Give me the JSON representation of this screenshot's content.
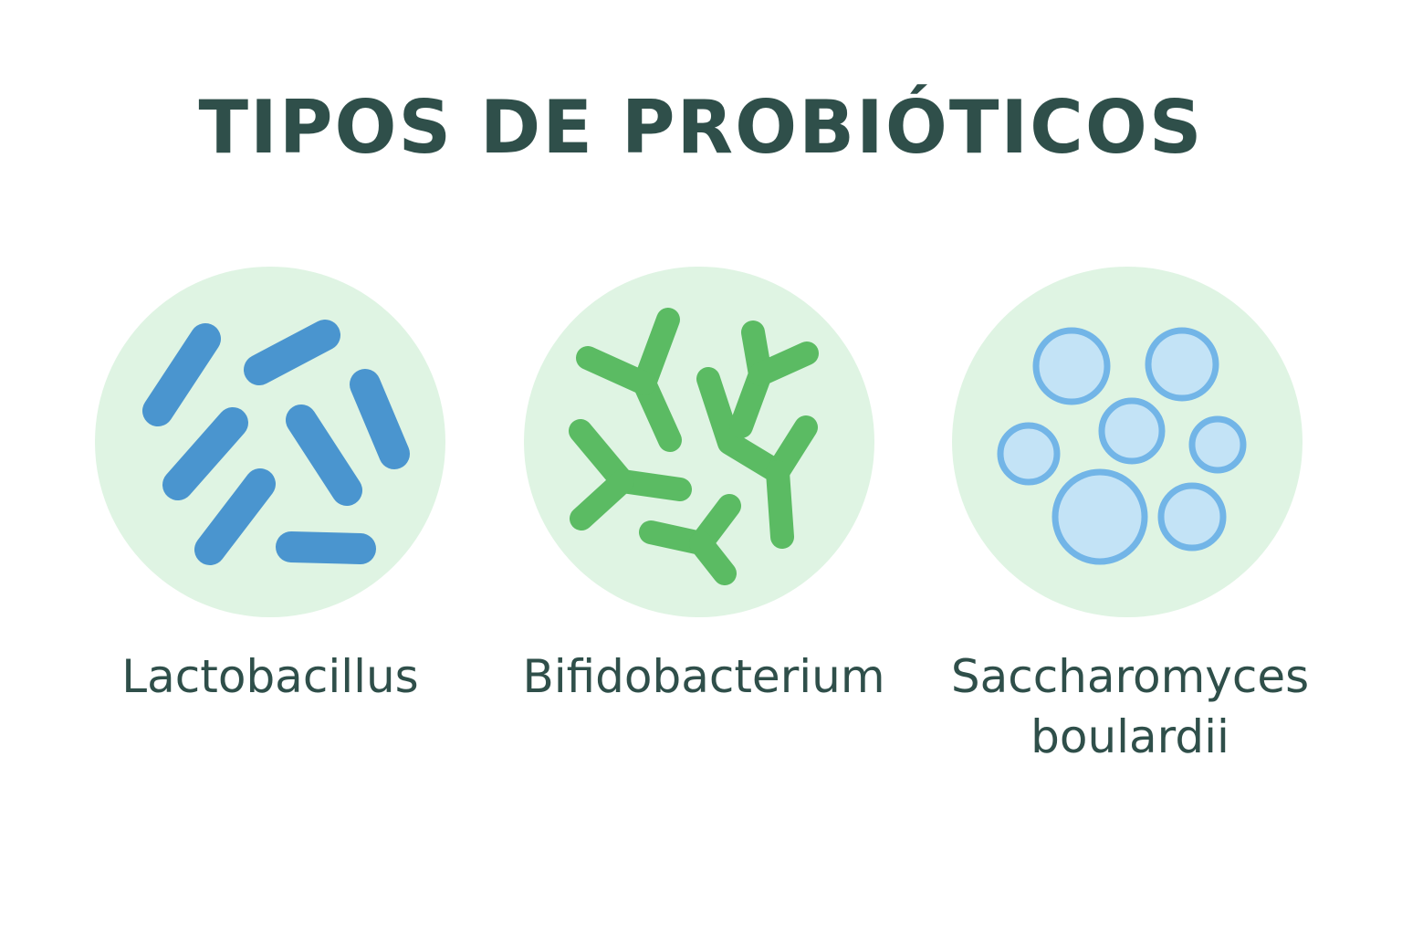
{
  "title": "TIPOS DE PROBIÓTICOS",
  "colors": {
    "circle_bg": "#dff4e3",
    "lactobacillus": "#4a95cf",
    "bifidobacterium": "#5bbb63",
    "saccharomyces_fill": "#c3e3f6",
    "saccharomyces_ring": "#72b5e7",
    "text": "#2f4f4a"
  },
  "items": [
    {
      "id": "lactobacillus",
      "label": [
        "Lactobacillus"
      ],
      "icon": "rod-bacteria-icon"
    },
    {
      "id": "bifidobacterium",
      "label": [
        "Bifidobacterium"
      ],
      "icon": "branched-bacteria-icon"
    },
    {
      "id": "saccharomyces",
      "label": [
        "Saccharomyces",
        "boulardii"
      ],
      "icon": "yeast-cells-icon"
    }
  ]
}
